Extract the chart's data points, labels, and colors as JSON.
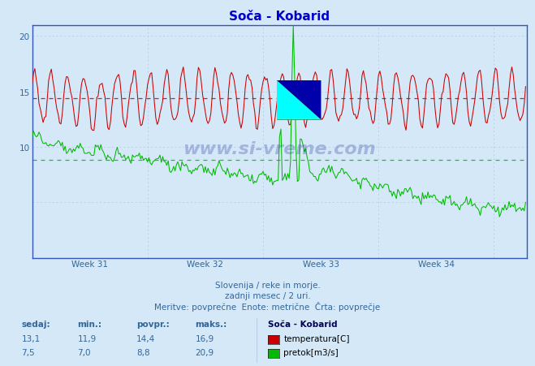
{
  "title": "Soča - Kobarid",
  "bg_color": "#d4e8f8",
  "plot_bg_color": "#d4e8f8",
  "grid_color": "#b8cfe8",
  "axis_color": "#3355bb",
  "title_color": "#0000cc",
  "text_color": "#336699",
  "ylim": [
    0,
    21
  ],
  "temp_avg": 14.4,
  "temp_min": 11.9,
  "temp_max": 16.9,
  "temp_last": 13.1,
  "flow_avg": 8.8,
  "flow_min": 7.0,
  "flow_max": 20.9,
  "flow_last": 7.5,
  "temp_color": "#cc0000",
  "flow_color": "#00bb00",
  "week_labels": [
    "Week 31",
    "Week 32",
    "Week 33",
    "Week 34"
  ],
  "footer1": "Slovenija / reke in morje.",
  "footer2": "zadnji mesec / 2 uri.",
  "footer3": "Meritve: povprečne  Enote: metrične  Črta: povprečje",
  "legend_title": "Soča - Kobarid",
  "col_headers": [
    "sedaj:",
    "min.:",
    "povpr.:",
    "maks.:"
  ],
  "row1_vals": [
    "13,1",
    "11,9",
    "14,4",
    "16,9"
  ],
  "row2_vals": [
    "7,5",
    "7,0",
    "8,8",
    "20,9"
  ],
  "row1_label": "temperatura[C]",
  "row2_label": "pretok[m3/s]"
}
